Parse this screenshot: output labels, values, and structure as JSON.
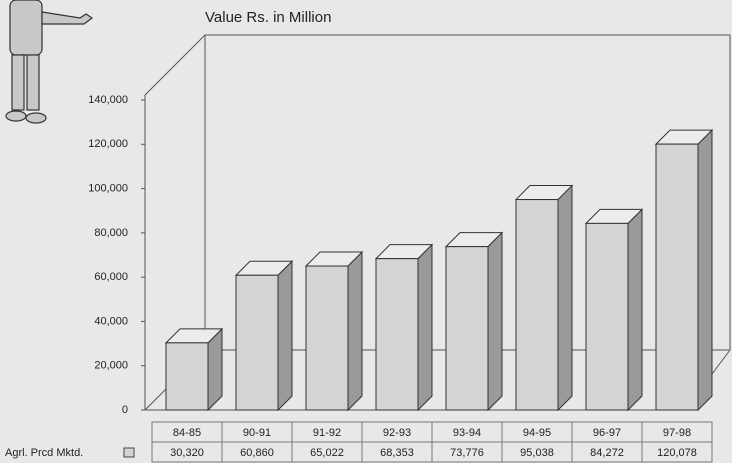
{
  "chart_data": {
    "type": "bar3d",
    "title": "Value Rs. in Million",
    "series_name": "Agrl. Prcd Mktd.",
    "categories": [
      "84-85",
      "90-91",
      "91-92",
      "92-93",
      "93-94",
      "94-95",
      "96-97",
      "97-98"
    ],
    "values": [
      30320,
      60860,
      65022,
      68353,
      73776,
      95038,
      84272,
      120078
    ],
    "value_labels": [
      "30,320",
      "60,860",
      "65,022",
      "68,353",
      "73,776",
      "95,038",
      "84,272",
      "120,078"
    ],
    "color": "#d4d4d4",
    "ylim": [
      0,
      140000
    ],
    "yticks": [
      0,
      {
        "value": 20000,
        "label": "20,000"
      },
      {
        "value": 40000,
        "label": "40,000"
      },
      {
        "value": 60000,
        "label": "60,000"
      },
      {
        "value": 80000,
        "label": "80,000"
      },
      {
        "value": 100000,
        "label": "100,000"
      },
      {
        "value": 120000,
        "label": "120,000"
      },
      {
        "value": 140000,
        "label": "140,000"
      }
    ],
    "grid": false
  }
}
